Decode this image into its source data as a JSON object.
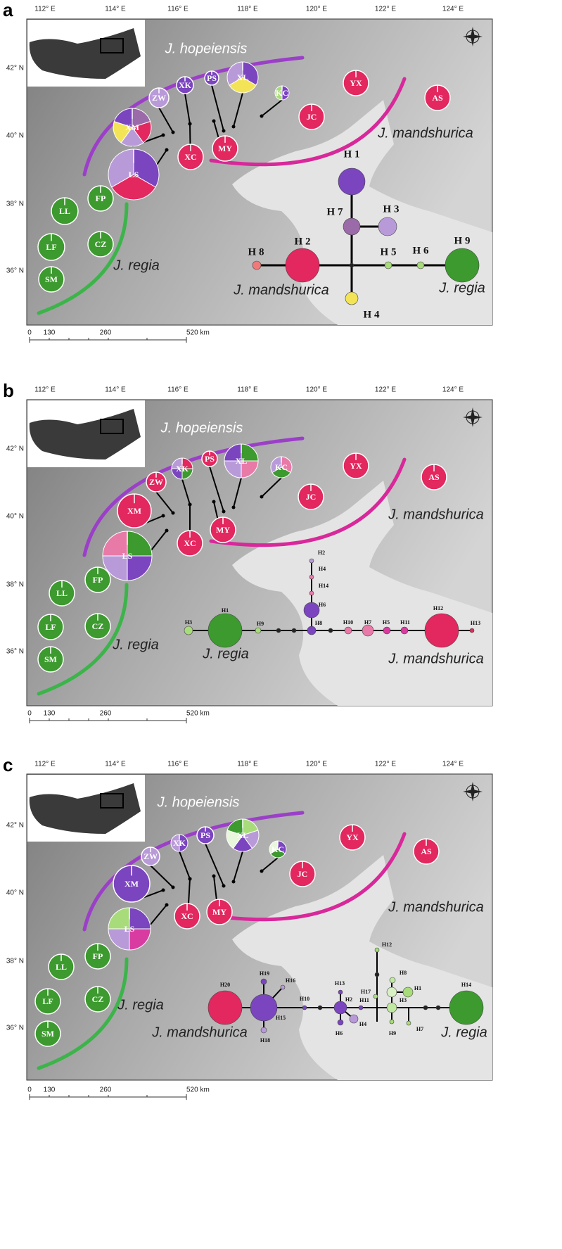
{
  "panels": [
    {
      "letter": "a",
      "longitudes": [
        "112° E",
        "114° E",
        "116° E",
        "118° E",
        "120° E",
        "122° E",
        "124° E"
      ],
      "latitudes": [
        "42° N",
        "40° N",
        "38° N",
        "36° N"
      ],
      "species_labels": [
        "J. hopeiensis",
        "J. mandshurica",
        "J. regia",
        "J. mandshurica",
        "J. regia"
      ],
      "populations": [
        "ZW",
        "XK",
        "PS",
        "XL",
        "KC",
        "YX",
        "AS",
        "JC",
        "XM",
        "XC",
        "MY",
        "LS",
        "FP",
        "LL",
        "CZ",
        "LF",
        "SM"
      ],
      "haplotypes": [
        "H 1",
        "H 7",
        "H 3",
        "H 2",
        "H 8",
        "H 5",
        "H 6",
        "H 9",
        "H 4"
      ],
      "scale": [
        "0",
        "130",
        "260",
        "520 km"
      ]
    },
    {
      "letter": "b",
      "longitudes": [
        "112° E",
        "114° E",
        "116° E",
        "118° E",
        "120° E",
        "122° E",
        "124° E"
      ],
      "latitudes": [
        "42° N",
        "40° N",
        "38° N",
        "36° N"
      ],
      "species_labels": [
        "J. hopeiensis",
        "J. mandshurica",
        "J. regia",
        "J. regia",
        "J. mandshurica"
      ],
      "populations": [
        "ZW",
        "XK",
        "PS",
        "XL",
        "KC",
        "YX",
        "AS",
        "JC",
        "XM",
        "XC",
        "MY",
        "LS",
        "FP",
        "LL",
        "CZ",
        "LF",
        "SM"
      ],
      "haplotypes": [
        "H1",
        "H3",
        "H9",
        "H8",
        "H6",
        "H14",
        "H4",
        "H2",
        "H10",
        "H7",
        "H5",
        "H11",
        "H12",
        "H13"
      ],
      "scale": [
        "0",
        "130",
        "260",
        "520 km"
      ]
    },
    {
      "letter": "c",
      "longitudes": [
        "112° E",
        "114° E",
        "116° E",
        "118° E",
        "120° E",
        "122° E",
        "124° E"
      ],
      "latitudes": [
        "42° N",
        "40° N",
        "38° N",
        "36° N"
      ],
      "species_labels": [
        "J. hopeiensis",
        "J. mandshurica",
        "J. regia",
        "J. mandshurica",
        "J. regia"
      ],
      "populations": [
        "ZW",
        "XK",
        "PS",
        "XL",
        "KC",
        "YX",
        "AS",
        "JC",
        "XM",
        "XC",
        "MY",
        "LS",
        "FP",
        "LL",
        "CZ",
        "LF",
        "SM"
      ],
      "haplotypes": [
        "H20",
        "H15",
        "H19",
        "H16",
        "H18",
        "H10",
        "H2",
        "H13",
        "H6",
        "H4",
        "H11",
        "H3",
        "H17",
        "H12",
        "H8",
        "H1",
        "H9",
        "H7",
        "H14"
      ],
      "scale": [
        "0",
        "130",
        "260",
        "520 km"
      ]
    }
  ]
}
